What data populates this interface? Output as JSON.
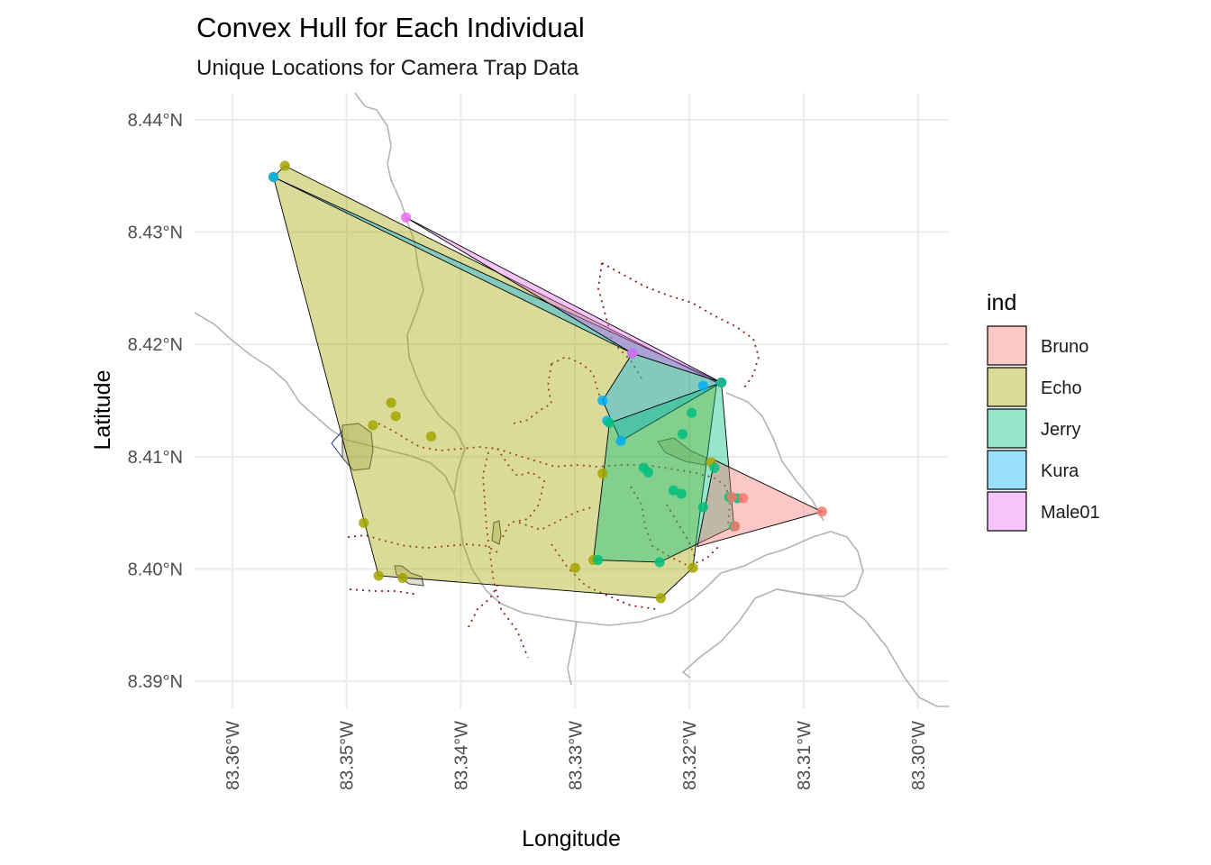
{
  "chart_data": {
    "type": "map",
    "title": "Convex Hull for Each Individual",
    "subtitle": "Unique Locations for Camera Trap Data",
    "xlabel": "Longitude",
    "ylabel": "Latitude",
    "xlim": [
      -83.3633,
      -83.2973
    ],
    "ylim": [
      8.3876,
      8.4424
    ],
    "x_ticks": [
      {
        "value": -83.36,
        "label": "83.36°W"
      },
      {
        "value": -83.35,
        "label": "83.35°W"
      },
      {
        "value": -83.34,
        "label": "83.34°W"
      },
      {
        "value": -83.33,
        "label": "83.33°W"
      },
      {
        "value": -83.32,
        "label": "83.32°W"
      },
      {
        "value": -83.31,
        "label": "83.31°W"
      },
      {
        "value": -83.3,
        "label": "83.30°W"
      }
    ],
    "y_ticks": [
      {
        "value": 8.39,
        "label": "8.39°N"
      },
      {
        "value": 8.4,
        "label": "8.40°N"
      },
      {
        "value": 8.41,
        "label": "8.41°N"
      },
      {
        "value": 8.42,
        "label": "8.42°N"
      },
      {
        "value": 8.43,
        "label": "8.43°N"
      },
      {
        "value": 8.44,
        "label": "8.44°N"
      }
    ],
    "grid": true,
    "legend": {
      "title": "ind",
      "position": "right"
    },
    "series": [
      {
        "name": "Echo",
        "color": "#A3A500",
        "fill": "#A3A500",
        "points": [
          [
            -83.3554,
            8.4359
          ],
          [
            -83.3564,
            8.4349
          ],
          [
            -83.3461,
            8.4148
          ],
          [
            -83.3457,
            8.4136
          ],
          [
            -83.3477,
            8.4128
          ],
          [
            -83.3426,
            8.4118
          ],
          [
            -83.3485,
            8.4041
          ],
          [
            -83.3472,
            8.3994
          ],
          [
            -83.3451,
            8.3992
          ],
          [
            -83.33,
            8.4001
          ],
          [
            -83.3284,
            8.4008
          ],
          [
            -83.3225,
            8.3974
          ],
          [
            -83.3197,
            8.4001
          ],
          [
            -83.3276,
            8.4085
          ],
          [
            -83.3181,
            8.4095
          ]
        ],
        "hull": [
          [
            -83.3554,
            8.4359
          ],
          [
            -83.3564,
            8.4349
          ],
          [
            -83.3472,
            8.3994
          ],
          [
            -83.3225,
            8.3974
          ],
          [
            -83.3197,
            8.4001
          ],
          [
            -83.3176,
            8.4166
          ]
        ]
      },
      {
        "name": "Kura",
        "color": "#00B0F6",
        "fill": "#00B0F6",
        "points": [
          [
            -83.3564,
            8.4349
          ],
          [
            -83.325,
            8.4192
          ],
          [
            -83.3172,
            8.4166
          ],
          [
            -83.3188,
            8.4163
          ],
          [
            -83.3276,
            8.415
          ],
          [
            -83.3272,
            8.4132
          ],
          [
            -83.326,
            8.4114
          ]
        ],
        "hull": [
          [
            -83.3564,
            8.4349
          ],
          [
            -83.3172,
            8.4166
          ],
          [
            -83.326,
            8.4114
          ],
          [
            -83.3276,
            8.415
          ],
          [
            -83.325,
            8.4192
          ]
        ]
      },
      {
        "name": "Male01",
        "color": "#E76BF3",
        "fill": "#E76BF3",
        "points": [
          [
            -83.3448,
            8.4313
          ],
          [
            -83.3172,
            8.4166
          ],
          [
            -83.325,
            8.4192
          ]
        ],
        "hull": [
          [
            -83.3448,
            8.4313
          ],
          [
            -83.3172,
            8.4166
          ],
          [
            -83.325,
            8.4192
          ]
        ]
      },
      {
        "name": "Jerry",
        "color": "#00BF7D",
        "fill": "#00BF7D",
        "points": [
          [
            -83.3172,
            8.4166
          ],
          [
            -83.3198,
            8.4139
          ],
          [
            -83.3206,
            8.412
          ],
          [
            -83.327,
            8.413
          ],
          [
            -83.324,
            8.409
          ],
          [
            -83.3236,
            8.4086
          ],
          [
            -83.3214,
            8.407
          ],
          [
            -83.3207,
            8.4067
          ],
          [
            -83.3188,
            8.4055
          ],
          [
            -83.3165,
            8.4064
          ],
          [
            -83.3158,
            8.4063
          ],
          [
            -83.3161,
            8.4038
          ],
          [
            -83.328,
            8.4008
          ],
          [
            -83.3226,
            8.4006
          ],
          [
            -83.3178,
            8.409
          ]
        ],
        "hull": [
          [
            -83.3172,
            8.4166
          ],
          [
            -83.327,
            8.413
          ],
          [
            -83.3284,
            8.4008
          ],
          [
            -83.3226,
            8.4006
          ],
          [
            -83.3161,
            8.4038
          ]
        ]
      },
      {
        "name": "Bruno",
        "color": "#F8766D",
        "fill": "#F8766D",
        "points": [
          [
            -83.3084,
            8.4051
          ],
          [
            -83.3153,
            8.4063
          ],
          [
            -83.3163,
            8.4064
          ],
          [
            -83.316,
            8.4038
          ]
        ],
        "hull": [
          [
            -83.3178,
            8.4097
          ],
          [
            -83.3084,
            8.4051
          ],
          [
            -83.3193,
            8.402
          ]
        ]
      }
    ]
  }
}
